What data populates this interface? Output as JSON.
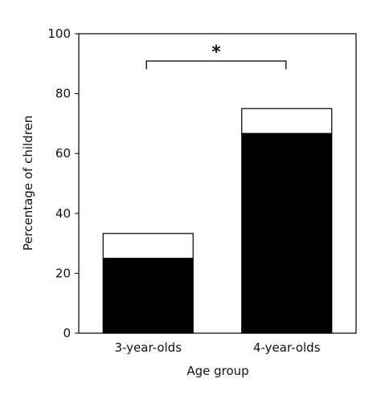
{
  "chart_data": {
    "type": "bar",
    "stacked": true,
    "categories": [
      "3-year-olds",
      "4-year-olds"
    ],
    "series": [
      {
        "values": [
          25,
          66.7
        ],
        "color": "#000000"
      },
      {
        "values": [
          8.3,
          8.3
        ],
        "color": "#ffffff"
      }
    ],
    "totals": [
      33.3,
      75
    ],
    "xlabel": "Age group",
    "ylabel": "Percentage of children",
    "ylim": [
      0,
      100
    ],
    "yticks": [
      0,
      20,
      40,
      60,
      80,
      100
    ],
    "grid": false,
    "legend": "none",
    "annotations": [
      {
        "text": "*",
        "between": [
          "3-year-olds",
          "4-year-olds"
        ],
        "type": "significance-bracket"
      }
    ]
  }
}
